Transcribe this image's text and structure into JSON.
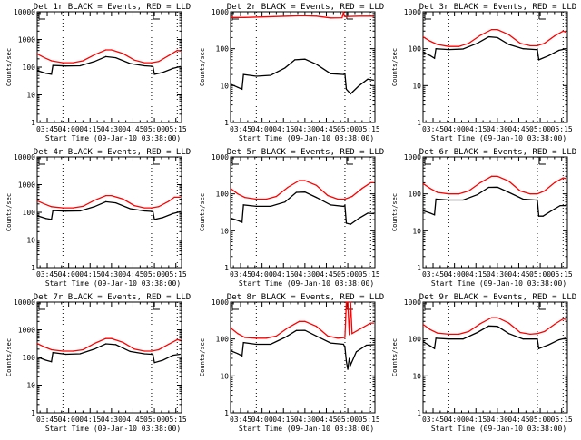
{
  "figure": {
    "background": "#ffffff",
    "events_color": "#000000",
    "lld_color": "#ff0000"
  },
  "chart_data": [
    {
      "type": "line",
      "title": "Det 1r BLACK = Events, RED = LLD",
      "xlabel": "Start Time (09-Jan-10 03:38:00)",
      "ylabel": "Counts/sec",
      "yscale": "log",
      "ylim": [
        1,
        10000
      ],
      "yticks": [
        "1",
        "10",
        "100",
        "1000",
        "10000"
      ],
      "xlim_minutes": [
        0,
        101
      ],
      "xticks": [
        "03:45",
        "04:00",
        "04:15",
        "04:30",
        "04:45",
        "05:00",
        "05:15"
      ],
      "dotted_lines_minutes": [
        18,
        80,
        98
      ],
      "series": [
        {
          "name": "Events",
          "color": "#000000",
          "x": [
            0,
            6,
            10,
            11,
            20,
            30,
            40,
            48,
            55,
            65,
            75,
            80,
            81,
            82,
            88,
            95,
            100
          ],
          "y": [
            75,
            60,
            55,
            115,
            110,
            112,
            160,
            240,
            220,
            135,
            112,
            108,
            105,
            55,
            65,
            90,
            105
          ]
        },
        {
          "name": "LLD",
          "color": "#ff0000",
          "x": [
            0,
            5,
            10,
            18,
            25,
            32,
            40,
            48,
            52,
            60,
            68,
            75,
            80,
            85,
            92,
            98,
            100
          ],
          "y": [
            300,
            220,
            170,
            145,
            145,
            170,
            280,
            420,
            420,
            310,
            180,
            145,
            145,
            160,
            260,
            400,
            380
          ]
        }
      ]
    },
    {
      "type": "line",
      "title": "Det 2r BLACK = Events, RED = LLD",
      "xlabel": "Start Time (09-Jan-10 03:38:00)",
      "ylabel": "Counts/sec",
      "yscale": "log",
      "ylim": [
        1,
        1000
      ],
      "yticks": [
        "1",
        "10",
        "100",
        "1000"
      ],
      "xlim_minutes": [
        0,
        101
      ],
      "xticks": [
        "03:45",
        "04:00",
        "04:15",
        "04:30",
        "04:45",
        "05:00",
        "05:15"
      ],
      "dotted_lines_minutes": [
        18,
        80,
        98
      ],
      "series": [
        {
          "name": "Events",
          "color": "#000000",
          "x": [
            0,
            5,
            8,
            9,
            18,
            28,
            38,
            45,
            52,
            60,
            70,
            79,
            80,
            81,
            84,
            90,
            96,
            100
          ],
          "y": [
            11,
            9,
            8,
            20,
            18,
            19,
            30,
            50,
            52,
            38,
            21,
            20,
            21,
            8,
            6,
            10,
            15,
            14
          ]
        },
        {
          "name": "LLD",
          "color": "#ff0000",
          "x": [
            0,
            10,
            20,
            30,
            40,
            50,
            60,
            70,
            78,
            79,
            79.5,
            80,
            90,
            100
          ],
          "y": [
            700,
            700,
            720,
            740,
            760,
            780,
            760,
            680,
            690,
            1000,
            760,
            740,
            760,
            760
          ]
        }
      ]
    },
    {
      "type": "line",
      "title": "Det 3r BLACK = Events, RED = LLD",
      "xlabel": "Start Time (09-Jan-10 03:38:00)",
      "ylabel": "Counts/sec",
      "yscale": "log",
      "ylim": [
        1,
        1000
      ],
      "yticks": [
        "1",
        "10",
        "100",
        "1000"
      ],
      "xlim_minutes": [
        0,
        101
      ],
      "xticks": [
        "03:45",
        "04:00",
        "04:15",
        "04:30",
        "04:45",
        "05:00",
        "05:15"
      ],
      "dotted_lines_minutes": [
        18,
        80,
        98
      ],
      "series": [
        {
          "name": "Events",
          "color": "#000000",
          "x": [
            0,
            5,
            8,
            9,
            18,
            28,
            38,
            46,
            52,
            60,
            70,
            79,
            80,
            81,
            88,
            95,
            100
          ],
          "y": [
            80,
            65,
            55,
            100,
            95,
            98,
            140,
            210,
            200,
            130,
            100,
            95,
            95,
            50,
            65,
            90,
            100
          ]
        },
        {
          "name": "LLD",
          "color": "#ff0000",
          "x": [
            0,
            5,
            10,
            18,
            25,
            32,
            40,
            48,
            52,
            60,
            68,
            75,
            80,
            85,
            92,
            98,
            100
          ],
          "y": [
            210,
            160,
            130,
            115,
            115,
            140,
            230,
            330,
            330,
            240,
            140,
            120,
            120,
            140,
            220,
            300,
            280
          ]
        }
      ]
    },
    {
      "type": "line",
      "title": "Det 4r BLACK = Events, RED = LLD",
      "xlabel": "Start Time (09-Jan-10 03:38:00)",
      "ylabel": "Counts/sec",
      "yscale": "log",
      "ylim": [
        1,
        10000
      ],
      "yticks": [
        "1",
        "10",
        "100",
        "1000",
        "10000"
      ],
      "xlim_minutes": [
        0,
        101
      ],
      "xticks": [
        "03:45",
        "04:00",
        "04:15",
        "04:30",
        "04:45",
        "05:00",
        "05:15"
      ],
      "dotted_lines_minutes": [
        18,
        80,
        98
      ],
      "series": [
        {
          "name": "Events",
          "color": "#000000",
          "x": [
            0,
            6,
            10,
            11,
            20,
            30,
            40,
            48,
            55,
            65,
            75,
            80,
            81,
            82,
            88,
            95,
            100
          ],
          "y": [
            75,
            60,
            55,
            115,
            110,
            112,
            160,
            240,
            220,
            135,
            112,
            108,
            105,
            55,
            65,
            90,
            105
          ]
        },
        {
          "name": "LLD",
          "color": "#ff0000",
          "x": [
            0,
            5,
            10,
            18,
            25,
            32,
            40,
            48,
            52,
            60,
            68,
            75,
            80,
            85,
            92,
            96,
            100
          ],
          "y": [
            260,
            200,
            160,
            145,
            145,
            165,
            270,
            400,
            400,
            300,
            175,
            145,
            145,
            160,
            250,
            350,
            350
          ]
        }
      ]
    },
    {
      "type": "line",
      "title": "Det 5r BLACK = Events, RED = LLD",
      "xlabel": "Start Time (09-Jan-10 03:38:00)",
      "ylabel": "Counts/sec",
      "yscale": "log",
      "ylim": [
        1,
        1000
      ],
      "yticks": [
        "1",
        "10",
        "100",
        "1000"
      ],
      "xlim_minutes": [
        0,
        101
      ],
      "xticks": [
        "03:45",
        "04:00",
        "04:15",
        "04:30",
        "04:45",
        "05:00",
        "05:15"
      ],
      "dotted_lines_minutes": [
        18,
        80,
        98
      ],
      "series": [
        {
          "name": "Events",
          "color": "#000000",
          "x": [
            0,
            5,
            8,
            9,
            18,
            28,
            38,
            46,
            52,
            60,
            70,
            79,
            80,
            81,
            84,
            90,
            96,
            100
          ],
          "y": [
            22,
            19,
            17,
            50,
            46,
            46,
            60,
            110,
            112,
            80,
            50,
            46,
            48,
            16,
            15,
            22,
            30,
            29
          ]
        },
        {
          "name": "LLD",
          "color": "#ff0000",
          "x": [
            0,
            5,
            10,
            18,
            25,
            32,
            40,
            48,
            52,
            60,
            68,
            75,
            80,
            85,
            92,
            98,
            100
          ],
          "y": [
            140,
            100,
            80,
            72,
            72,
            85,
            150,
            230,
            230,
            170,
            90,
            72,
            72,
            85,
            140,
            200,
            200
          ]
        }
      ]
    },
    {
      "type": "line",
      "title": "Det 6r BLACK = Events, RED = LLD",
      "xlabel": "Start Time (09-Jan-10 03:38:00)",
      "ylabel": "Counts/sec",
      "yscale": "log",
      "ylim": [
        1,
        1000
      ],
      "yticks": [
        "1",
        "10",
        "100",
        "1000"
      ],
      "xlim_minutes": [
        0,
        101
      ],
      "xticks": [
        "03:45",
        "04:00",
        "04:15",
        "04:30",
        "04:45",
        "05:00",
        "05:15"
      ],
      "dotted_lines_minutes": [
        18,
        80,
        98
      ],
      "series": [
        {
          "name": "Events",
          "color": "#000000",
          "x": [
            0,
            5,
            8,
            9,
            18,
            28,
            38,
            46,
            52,
            60,
            70,
            79,
            80,
            81,
            84,
            90,
            96,
            100
          ],
          "y": [
            35,
            30,
            27,
            72,
            68,
            68,
            95,
            150,
            152,
            110,
            72,
            68,
            68,
            25,
            25,
            35,
            48,
            48
          ]
        },
        {
          "name": "LLD",
          "color": "#ff0000",
          "x": [
            0,
            5,
            10,
            18,
            25,
            32,
            40,
            48,
            52,
            60,
            68,
            75,
            80,
            85,
            92,
            98,
            100
          ],
          "y": [
            190,
            140,
            110,
            100,
            100,
            120,
            200,
            300,
            300,
            220,
            120,
            100,
            100,
            120,
            200,
            270,
            260
          ]
        }
      ]
    },
    {
      "type": "line",
      "title": "Det 7r BLACK = Events, RED = LLD",
      "xlabel": "Start Time (09-Jan-10 03:38:00)",
      "ylabel": "Counts/sec",
      "yscale": "log",
      "ylim": [
        1,
        10000
      ],
      "yticks": [
        "1",
        "10",
        "100",
        "1000",
        "10000"
      ],
      "xlim_minutes": [
        0,
        101
      ],
      "xticks": [
        "03:45",
        "04:00",
        "04:15",
        "04:30",
        "04:45",
        "05:00",
        "05:15"
      ],
      "dotted_lines_minutes": [
        18,
        80,
        98
      ],
      "series": [
        {
          "name": "Events",
          "color": "#000000",
          "x": [
            0,
            6,
            10,
            11,
            20,
            30,
            40,
            48,
            55,
            65,
            75,
            80,
            81,
            82,
            88,
            95,
            100
          ],
          "y": [
            105,
            80,
            70,
            150,
            130,
            135,
            200,
            310,
            290,
            165,
            135,
            130,
            125,
            65,
            80,
            120,
            130
          ]
        },
        {
          "name": "LLD",
          "color": "#ff0000",
          "x": [
            0,
            5,
            10,
            18,
            25,
            32,
            40,
            48,
            52,
            60,
            68,
            75,
            80,
            85,
            92,
            98,
            100
          ],
          "y": [
            320,
            240,
            190,
            170,
            170,
            190,
            320,
            480,
            480,
            350,
            200,
            170,
            170,
            190,
            300,
            440,
            420
          ]
        }
      ]
    },
    {
      "type": "line",
      "title": "Det 8r BLACK = Events, RED = LLD",
      "xlabel": "Start Time (09-Jan-10 03:38:00)",
      "ylabel": "Counts/sec",
      "yscale": "log",
      "ylim": [
        1,
        1000
      ],
      "yticks": [
        "1",
        "10",
        "100",
        "1000"
      ],
      "xlim_minutes": [
        0,
        101
      ],
      "xticks": [
        "03:45",
        "04:00",
        "04:15",
        "04:30",
        "04:45",
        "05:00",
        "05:15"
      ],
      "dotted_lines_minutes": [
        18,
        80,
        98
      ],
      "series": [
        {
          "name": "Events",
          "color": "#000000",
          "x": [
            0,
            5,
            8,
            9,
            18,
            28,
            38,
            46,
            52,
            60,
            70,
            79,
            80,
            81,
            82,
            83,
            84,
            88,
            95,
            100
          ],
          "y": [
            48,
            40,
            35,
            80,
            72,
            72,
            110,
            170,
            172,
            120,
            78,
            72,
            60,
            25,
            15,
            30,
            20,
            45,
            68,
            70
          ]
        },
        {
          "name": "LLD",
          "color": "#ff0000",
          "x": [
            0,
            5,
            10,
            18,
            25,
            32,
            40,
            48,
            52,
            60,
            68,
            75,
            80,
            81,
            82,
            83,
            84,
            85,
            92,
            98,
            100
          ],
          "y": [
            200,
            140,
            110,
            105,
            105,
            120,
            200,
            300,
            300,
            220,
            120,
            105,
            110,
            1000,
            1000,
            130,
            1000,
            140,
            200,
            270,
            270
          ]
        }
      ]
    },
    {
      "type": "line",
      "title": "Det 9r BLACK = Events, RED = LLD",
      "xlabel": "Start Time (09-Jan-10 03:38:00)",
      "ylabel": "Counts/sec",
      "yscale": "log",
      "ylim": [
        1,
        1000
      ],
      "yticks": [
        "1",
        "10",
        "100",
        "1000"
      ],
      "xlim_minutes": [
        0,
        101
      ],
      "xticks": [
        "03:45",
        "04:00",
        "04:15",
        "04:30",
        "04:45",
        "05:00",
        "05:15"
      ],
      "dotted_lines_minutes": [
        18,
        80,
        98
      ],
      "series": [
        {
          "name": "Events",
          "color": "#000000",
          "x": [
            0,
            5,
            8,
            9,
            18,
            28,
            38,
            46,
            52,
            60,
            70,
            79,
            80,
            81,
            88,
            95,
            100
          ],
          "y": [
            85,
            65,
            55,
            105,
            100,
            100,
            150,
            225,
            220,
            140,
            100,
            100,
            100,
            55,
            70,
            95,
            105
          ]
        },
        {
          "name": "LLD",
          "color": "#ff0000",
          "x": [
            0,
            5,
            10,
            18,
            25,
            32,
            40,
            48,
            52,
            60,
            68,
            75,
            80,
            85,
            92,
            98,
            100
          ],
          "y": [
            250,
            180,
            145,
            135,
            135,
            160,
            260,
            380,
            380,
            270,
            150,
            135,
            140,
            160,
            250,
            350,
            340
          ]
        }
      ]
    }
  ]
}
